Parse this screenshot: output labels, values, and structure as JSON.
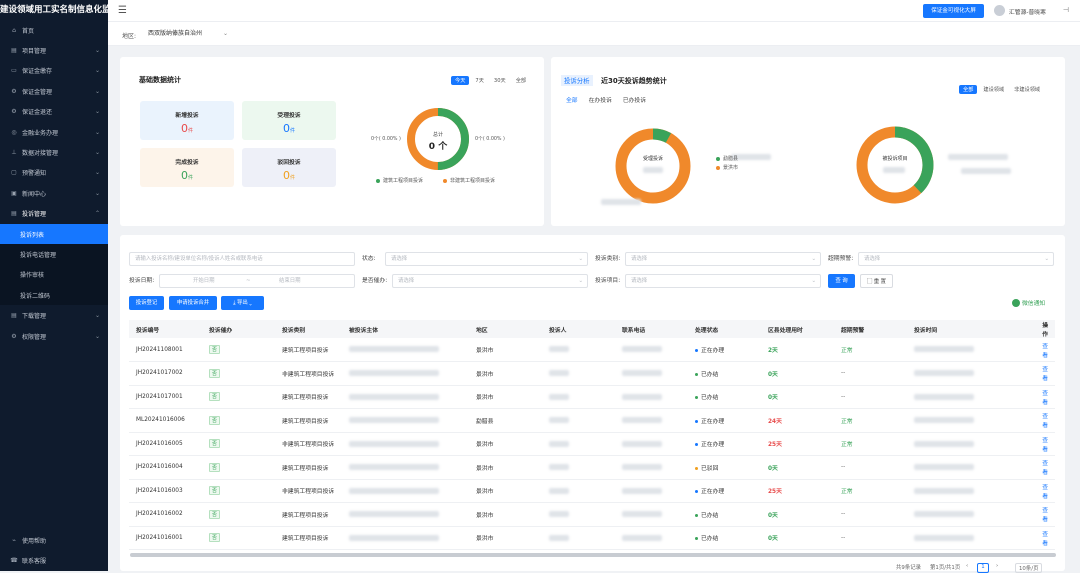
{
  "sidebar": {
    "title": "建设领域用工实名制信息化监管平台",
    "menu": [
      {
        "label": "首页",
        "icon": "home-icon",
        "glyph": "⌂",
        "arrow": ""
      },
      {
        "label": "项目管理",
        "icon": "project-icon",
        "glyph": "▤",
        "arrow": "⌄"
      },
      {
        "label": "保证金缴存",
        "icon": "deposit-icon",
        "glyph": "▭",
        "arrow": "⌄"
      },
      {
        "label": "保证金管理",
        "icon": "gear-icon",
        "glyph": "⚙",
        "arrow": "⌄"
      },
      {
        "label": "保证金退还",
        "icon": "return-icon",
        "glyph": "⚙",
        "arrow": "⌄"
      },
      {
        "label": "金融业务办理",
        "icon": "finance-icon",
        "glyph": "◎",
        "arrow": "⌄"
      },
      {
        "label": "数据对接管理",
        "icon": "data-icon",
        "glyph": "⊥",
        "arrow": "⌄"
      },
      {
        "label": "预警通知",
        "icon": "alert-icon",
        "glyph": "▢",
        "arrow": "⌄"
      },
      {
        "label": "新闻中心",
        "icon": "news-icon",
        "glyph": "▣",
        "arrow": "⌄"
      },
      {
        "label": "投诉管理",
        "icon": "complaint-icon",
        "glyph": "▤",
        "arrow": "⌃"
      }
    ],
    "submenu": [
      "投诉列表",
      "投诉电话管理",
      "操作审核",
      "投诉二维码"
    ],
    "menu_after": [
      {
        "label": "下载管理",
        "icon": "download-icon",
        "glyph": "▤",
        "arrow": "⌄"
      },
      {
        "label": "权限管理",
        "icon": "permission-icon",
        "glyph": "⚙",
        "arrow": "⌄"
      }
    ],
    "footer": [
      {
        "label": "使用帮助",
        "icon": "help-icon",
        "glyph": "⌁"
      },
      {
        "label": "联系客服",
        "icon": "service-icon",
        "glyph": "☎"
      }
    ]
  },
  "header": {
    "big_screen_btn": "保证金可视化大屏",
    "user": "汇管源-普晓寒"
  },
  "region": {
    "label": "地区:",
    "value": "西双版纳傣族自治州"
  },
  "basic_stats": {
    "title": "基础数据统计",
    "ranges": [
      "今天",
      "7天",
      "30天",
      "全部"
    ],
    "cards": [
      {
        "title": "新增投诉",
        "value": "0",
        "unit": "件",
        "bg": "#eaf3fd",
        "color": "#e84b4b"
      },
      {
        "title": "受理投诉",
        "value": "0",
        "unit": "件",
        "bg": "#ecf8ef",
        "color": "#1677ff"
      },
      {
        "title": "完成投诉",
        "value": "0",
        "unit": "件",
        "bg": "#fdf4ea",
        "color": "#3aa35a"
      },
      {
        "title": "驳回投诉",
        "value": "0",
        "unit": "件",
        "bg": "#eef0f8",
        "color": "#f0a020"
      }
    ],
    "donut": {
      "center_label": "总计",
      "center_value": "0 个",
      "left_label": "0个( 0.00% )",
      "right_label": "0个( 0.00% )"
    },
    "legend": [
      {
        "label": "建筑工程项目投诉",
        "color": "#3aa35a"
      },
      {
        "label": "非建筑工程项目投诉",
        "color": "#f0892b"
      }
    ]
  },
  "analysis": {
    "tag": "投诉分析",
    "title": "近30天投诉趋势统计",
    "tabs": [
      "全部",
      "在办投诉",
      "已办投诉"
    ],
    "filters": [
      "全部",
      "建设领域",
      "非建设领域"
    ],
    "donut1": {
      "center_label": "受理投诉",
      "share_green": 0.08,
      "legend": [
        "勐腊县",
        "景洪市"
      ]
    },
    "donut2": {
      "center_label": "被投诉项目",
      "share_green": 0.38
    }
  },
  "filters": {
    "search_placeholder": "请输入投诉名称/建设单位名称/投诉人姓名或联系电话",
    "rows": [
      {
        "label": "状态:",
        "placeholder": "请选择"
      },
      {
        "label": "投诉类别:",
        "placeholder": "请选择"
      },
      {
        "label": "超期预警:",
        "placeholder": "请选择"
      },
      {
        "label": "是否催办:",
        "placeholder": "请选择"
      },
      {
        "label": "投诉项目:",
        "placeholder": "请选择"
      }
    ],
    "date_label": "投诉日期:",
    "date_start": "开始日期",
    "date_sep": "~",
    "date_end": "结束日期",
    "query": "查 询",
    "reset": "重 置"
  },
  "actions": {
    "register": "投诉登记",
    "apply": "申请投诉合并",
    "export": "导出",
    "wechat": "微信通知"
  },
  "table": {
    "headers": [
      "投诉编号",
      "投诉催办",
      "投诉类别",
      "被投诉主体",
      "地区",
      "投诉人",
      "联系电话",
      "处理状态",
      "区县处理用时",
      "超期预警",
      "投诉时间",
      "操作"
    ],
    "rows": [
      {
        "id": "JH20241108001",
        "urge": "否",
        "type": "建筑工程项目投诉",
        "region": "景洪市",
        "status": "正在办理",
        "sc": "#1677ff",
        "days": "2天",
        "dc": "#3aa35a",
        "warn": "正常",
        "wc": "#3aa35a"
      },
      {
        "id": "JH20241017002",
        "urge": "否",
        "type": "非建筑工程项目投诉",
        "region": "景洪市",
        "status": "已办结",
        "sc": "#3aa35a",
        "days": "0天",
        "dc": "#3aa35a",
        "warn": "--",
        "wc": "#666"
      },
      {
        "id": "JH20241017001",
        "urge": "否",
        "type": "建筑工程项目投诉",
        "region": "景洪市",
        "status": "已办结",
        "sc": "#3aa35a",
        "days": "0天",
        "dc": "#3aa35a",
        "warn": "--",
        "wc": "#666"
      },
      {
        "id": "ML20241016006",
        "urge": "否",
        "type": "建筑工程项目投诉",
        "region": "勐腊县",
        "status": "正在办理",
        "sc": "#1677ff",
        "days": "24天",
        "dc": "#e84b4b",
        "warn": "正常",
        "wc": "#3aa35a"
      },
      {
        "id": "JH20241016005",
        "urge": "否",
        "type": "非建筑工程项目投诉",
        "region": "景洪市",
        "status": "正在办理",
        "sc": "#1677ff",
        "days": "25天",
        "dc": "#e84b4b",
        "warn": "正常",
        "wc": "#3aa35a"
      },
      {
        "id": "JH20241016004",
        "urge": "否",
        "type": "建筑工程项目投诉",
        "region": "景洪市",
        "status": "已驳回",
        "sc": "#f0a020",
        "days": "0天",
        "dc": "#3aa35a",
        "warn": "--",
        "wc": "#666"
      },
      {
        "id": "JH20241016003",
        "urge": "否",
        "type": "非建筑工程项目投诉",
        "region": "景洪市",
        "status": "正在办理",
        "sc": "#1677ff",
        "days": "25天",
        "dc": "#e84b4b",
        "warn": "正常",
        "wc": "#3aa35a"
      },
      {
        "id": "JH20241016002",
        "urge": "否",
        "type": "建筑工程项目投诉",
        "region": "景洪市",
        "status": "已办结",
        "sc": "#3aa35a",
        "days": "0天",
        "dc": "#3aa35a",
        "warn": "--",
        "wc": "#666"
      },
      {
        "id": "JH20241016001",
        "urge": "否",
        "type": "建筑工程项目投诉",
        "region": "景洪市",
        "status": "已办结",
        "sc": "#3aa35a",
        "days": "0天",
        "dc": "#3aa35a",
        "warn": "--",
        "wc": "#666"
      }
    ],
    "action_label": "查看"
  },
  "pagination": {
    "total": "共9条记录",
    "page_info": "第1页/共1页",
    "current": "1",
    "size": "10条/页"
  }
}
